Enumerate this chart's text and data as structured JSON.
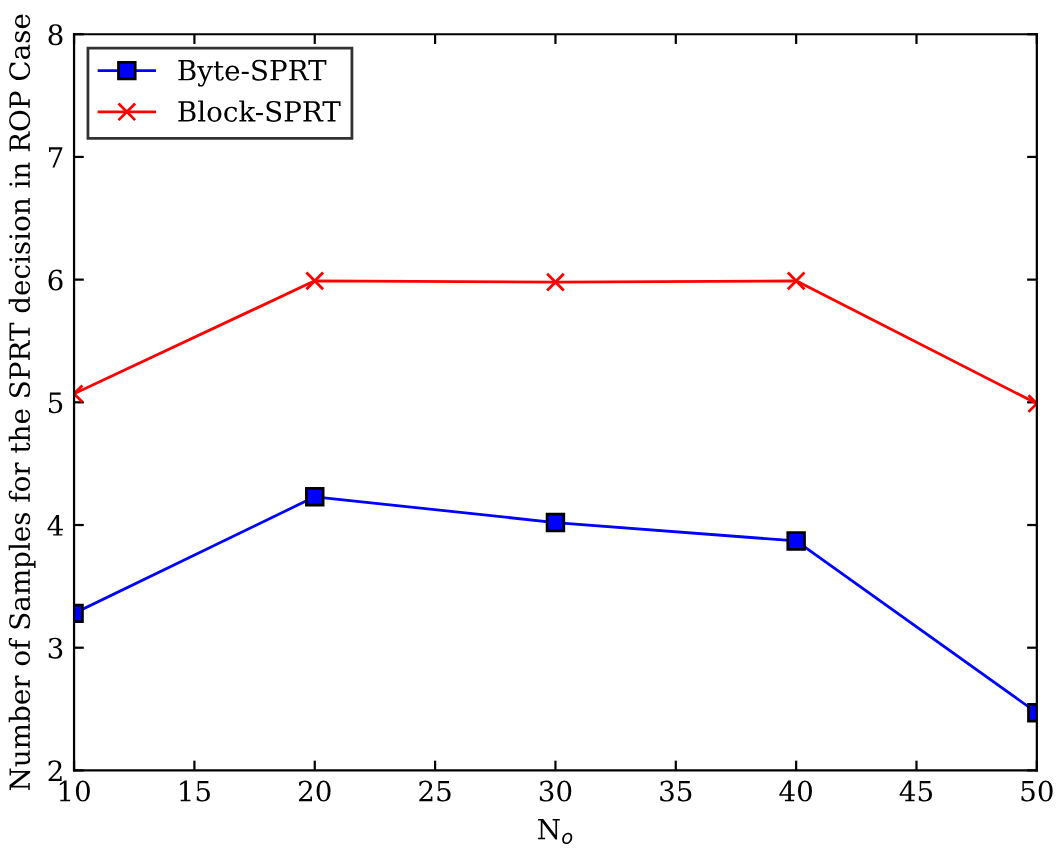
{
  "chart_data": {
    "type": "line",
    "xlabel": "N$_{o}$",
    "ylabel": "Number of Samples for the SPRT decision in ROP Case",
    "x": [
      10,
      20,
      30,
      40,
      50
    ],
    "series": [
      {
        "name": "Byte-SPRT",
        "color": "#0000ff",
        "values": [
          3.28,
          4.23,
          4.02,
          3.87,
          2.47
        ],
        "marker": "square"
      },
      {
        "name": "Block-SPRT",
        "color": "#ff0000",
        "values": [
          5.07,
          5.99,
          5.98,
          5.99,
          4.99
        ],
        "marker": "cross"
      }
    ],
    "xlim": [
      10,
      50
    ],
    "xticks": [
      10,
      15,
      20,
      25,
      30,
      35,
      40,
      45,
      50
    ],
    "ylim": [
      2,
      8
    ],
    "yticks": [
      2,
      3,
      4,
      5,
      6,
      7,
      8
    ],
    "legend": "top left",
    "grid": false,
    "line_style": "solid"
  }
}
